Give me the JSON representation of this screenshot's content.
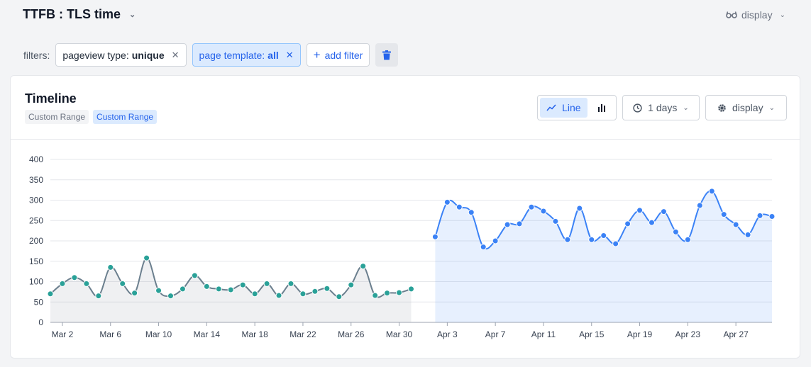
{
  "header": {
    "title": "TTFB : TLS time",
    "display_label": "display"
  },
  "filters": {
    "label": "filters:",
    "items": [
      {
        "key": "pageview type:",
        "value": "unique",
        "active": false
      },
      {
        "key": "page template:",
        "value": "all",
        "active": true
      }
    ],
    "add_label": "add filter"
  },
  "card": {
    "title": "Timeline",
    "badges": [
      "Custom Range",
      "Custom Range"
    ],
    "line_label": "Line",
    "interval_label": "1 days",
    "display_label": "display"
  },
  "colors": {
    "series1": "#6b7f8e",
    "series1_point": "#2aa198",
    "series2": "#3b82f6",
    "accent": "#2563eb"
  },
  "chart_data": {
    "type": "line",
    "ylim": [
      0,
      400
    ],
    "yticks": [
      0,
      50,
      100,
      150,
      200,
      250,
      300,
      350,
      400
    ],
    "grid": true,
    "x_tick_labels": [
      "Mar 2",
      "Mar 6",
      "Mar 10",
      "Mar 14",
      "Mar 18",
      "Mar 22",
      "Mar 26",
      "Mar 30",
      "Apr 3",
      "Apr 7",
      "Apr 11",
      "Apr 15",
      "Apr 19",
      "Apr 23",
      "Apr 27"
    ],
    "series": [
      {
        "x": [
          "Mar 1",
          "Mar 2",
          "Mar 3",
          "Mar 4",
          "Mar 5",
          "Mar 6",
          "Mar 7",
          "Mar 8",
          "Mar 9",
          "Mar 10",
          "Mar 11",
          "Mar 12",
          "Mar 13",
          "Mar 14",
          "Mar 15",
          "Mar 16",
          "Mar 17",
          "Mar 18",
          "Mar 19",
          "Mar 20",
          "Mar 21",
          "Mar 22",
          "Mar 23",
          "Mar 24",
          "Mar 25",
          "Mar 26",
          "Mar 27",
          "Mar 28",
          "Mar 29",
          "Mar 30",
          "Mar 31"
        ],
        "values": [
          70,
          95,
          110,
          95,
          65,
          135,
          95,
          72,
          158,
          78,
          65,
          82,
          115,
          88,
          82,
          80,
          92,
          70,
          95,
          66,
          95,
          70,
          76,
          83,
          63,
          92,
          138,
          66,
          72,
          73,
          82
        ]
      },
      {
        "x": [
          "Apr 2",
          "Apr 3",
          "Apr 4",
          "Apr 5",
          "Apr 6",
          "Apr 7",
          "Apr 8",
          "Apr 9",
          "Apr 10",
          "Apr 11",
          "Apr 12",
          "Apr 13",
          "Apr 14",
          "Apr 15",
          "Apr 16",
          "Apr 17",
          "Apr 18",
          "Apr 19",
          "Apr 20",
          "Apr 21",
          "Apr 22",
          "Apr 23",
          "Apr 24",
          "Apr 25",
          "Apr 26",
          "Apr 27",
          "Apr 28",
          "Apr 29",
          "Apr 30"
        ],
        "values": [
          210,
          295,
          283,
          270,
          185,
          200,
          240,
          242,
          283,
          273,
          248,
          203,
          280,
          203,
          213,
          193,
          242,
          275,
          245,
          272,
          222,
          203,
          287,
          322,
          265,
          240,
          215,
          262,
          260
        ]
      }
    ]
  }
}
